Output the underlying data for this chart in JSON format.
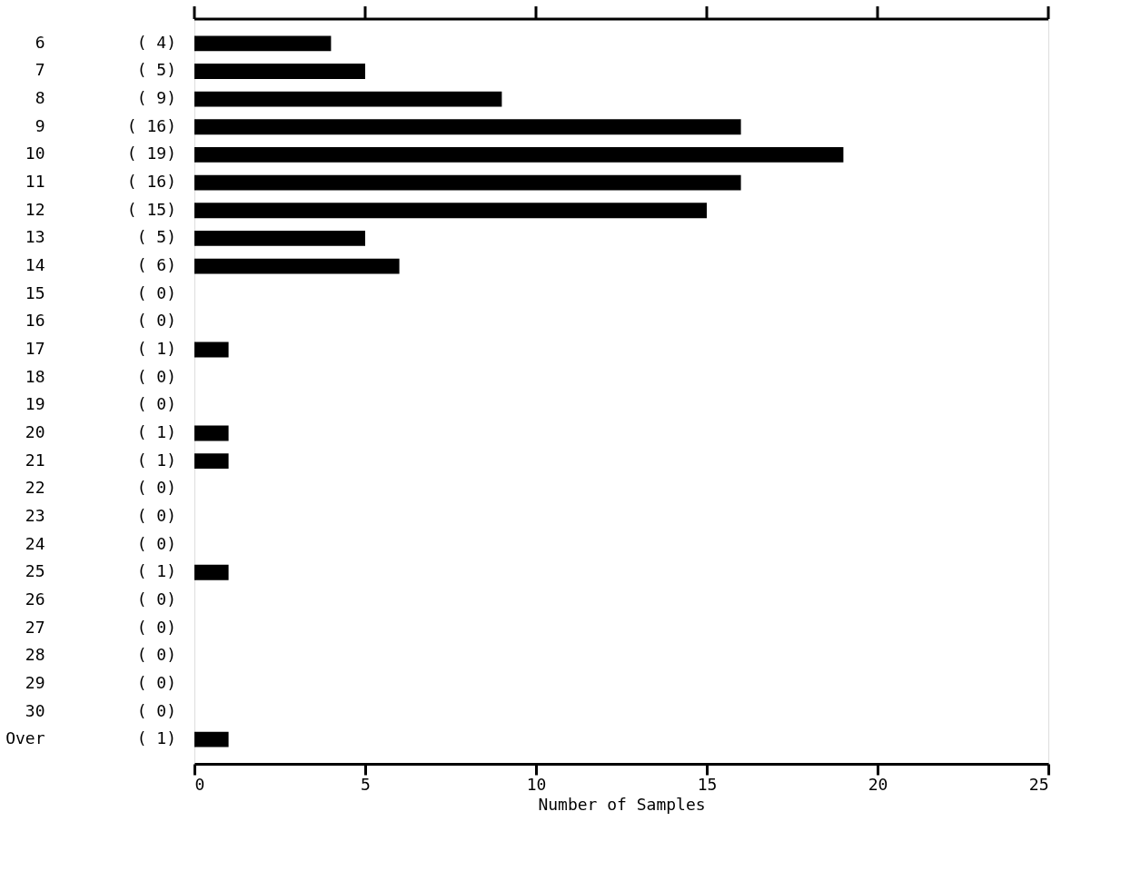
{
  "chart_data": {
    "type": "bar",
    "orientation": "horizontal",
    "categories": [
      "6",
      "7",
      "8",
      "9",
      "10",
      "11",
      "12",
      "13",
      "14",
      "15",
      "16",
      "17",
      "18",
      "19",
      "20",
      "21",
      "22",
      "23",
      "24",
      "25",
      "26",
      "27",
      "28",
      "29",
      "30",
      "Over"
    ],
    "values": [
      4,
      5,
      9,
      16,
      19,
      16,
      15,
      5,
      6,
      0,
      0,
      1,
      0,
      0,
      1,
      1,
      0,
      0,
      0,
      1,
      0,
      0,
      0,
      0,
      0,
      1
    ],
    "value_labels": [
      "( 4)",
      "( 5)",
      "( 9)",
      "( 16)",
      "( 19)",
      "( 16)",
      "( 15)",
      "( 5)",
      "( 6)",
      "( 0)",
      "( 0)",
      "( 1)",
      "( 0)",
      "( 0)",
      "( 1)",
      "( 1)",
      "( 0)",
      "( 0)",
      "( 0)",
      "( 1)",
      "( 0)",
      "( 0)",
      "( 0)",
      "( 0)",
      "( 0)",
      "( 1)"
    ],
    "color": "#000000",
    "xlabel": "Number of Samples",
    "xlim": [
      0,
      25
    ],
    "xticks": [
      0,
      5,
      10,
      15,
      20,
      25
    ],
    "grid": false
  }
}
